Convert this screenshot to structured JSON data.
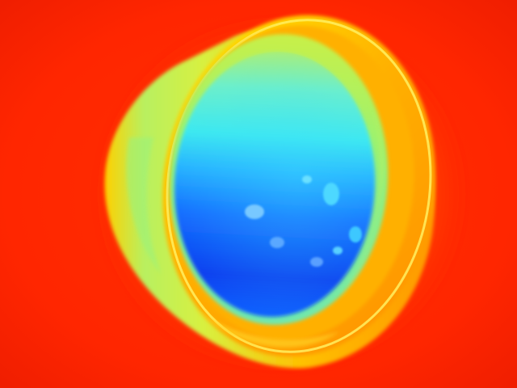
{
  "image": {
    "kind": "thermal-camera-image",
    "subject": "cup-viewed-from-above",
    "palette": {
      "background_hot": "#ff2a00",
      "background_edge": "#ff4a00",
      "rim_orange": "#ff9a00",
      "rim_yellow": "#ffe000",
      "wall_green": "#9cf25a",
      "liquid_cyan": "#3cf2e6",
      "liquid_blue": "#1478ff",
      "liquid_deep_blue": "#0a3cf0"
    }
  }
}
